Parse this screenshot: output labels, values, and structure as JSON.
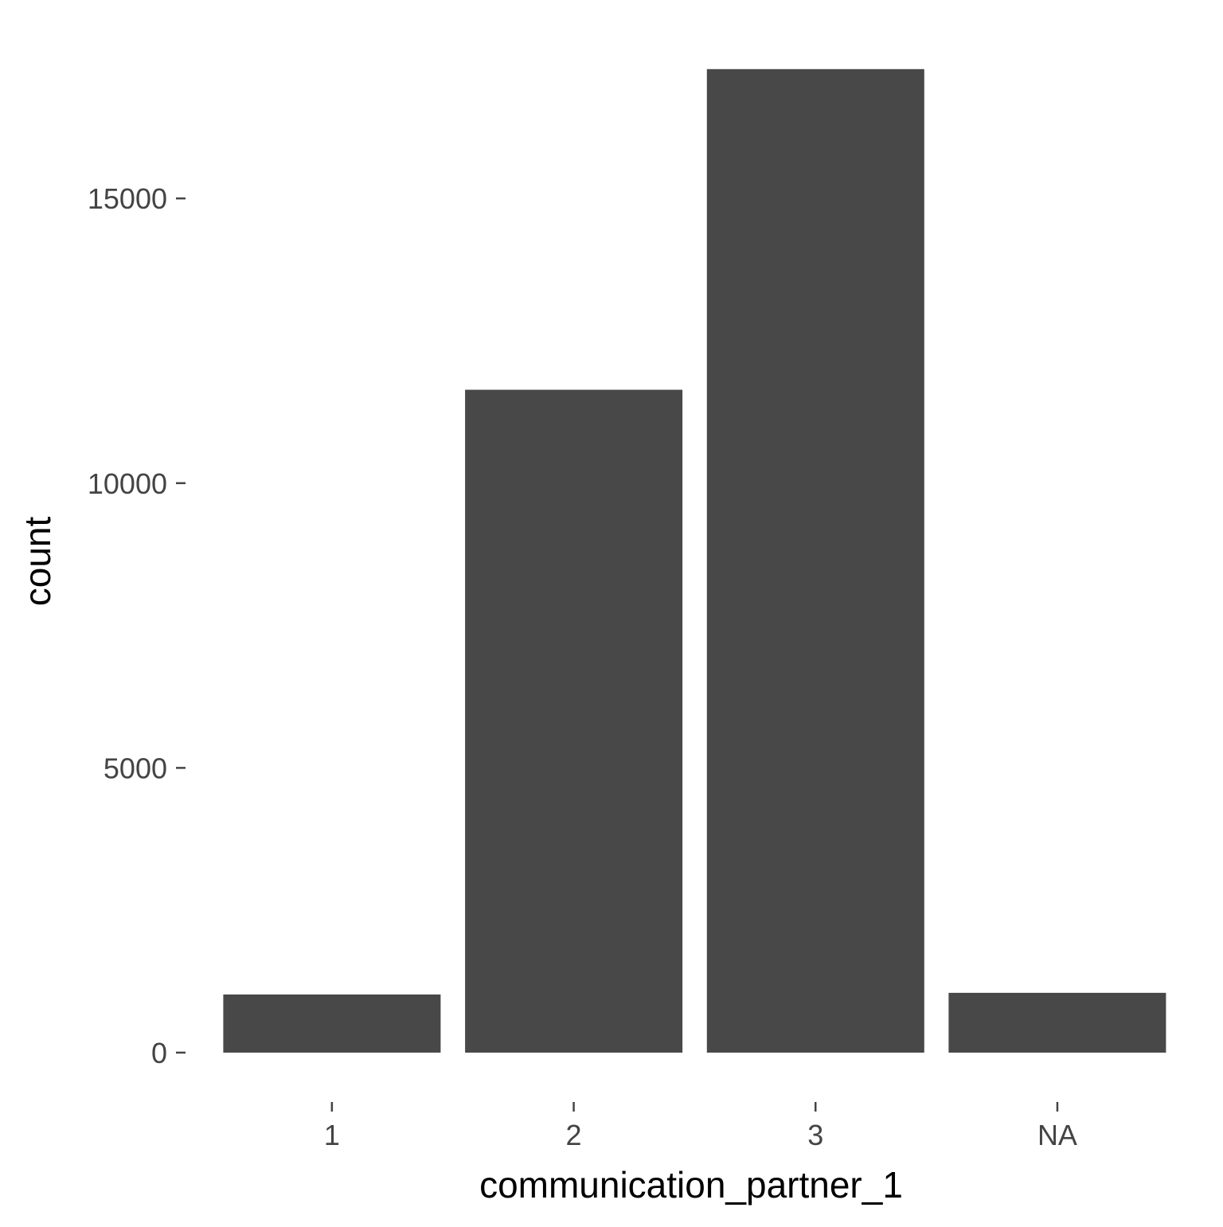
{
  "chart_data": {
    "type": "bar",
    "title": "",
    "xlabel": "communication_partner_1",
    "ylabel": "count",
    "categories": [
      "1",
      "2",
      "3",
      "NA"
    ],
    "values": [
      1020,
      11640,
      17270,
      1050
    ],
    "ylim": [
      0,
      17270
    ],
    "yticks": [
      0,
      5000,
      10000,
      15000
    ],
    "ytick_labels": [
      "0",
      "5000",
      "10000",
      "15000"
    ],
    "grid": false,
    "legend": "none",
    "colors": {
      "bar": "#484848",
      "tick_text": "#444444",
      "axis_title": "#000000",
      "background": "#ffffff"
    }
  }
}
